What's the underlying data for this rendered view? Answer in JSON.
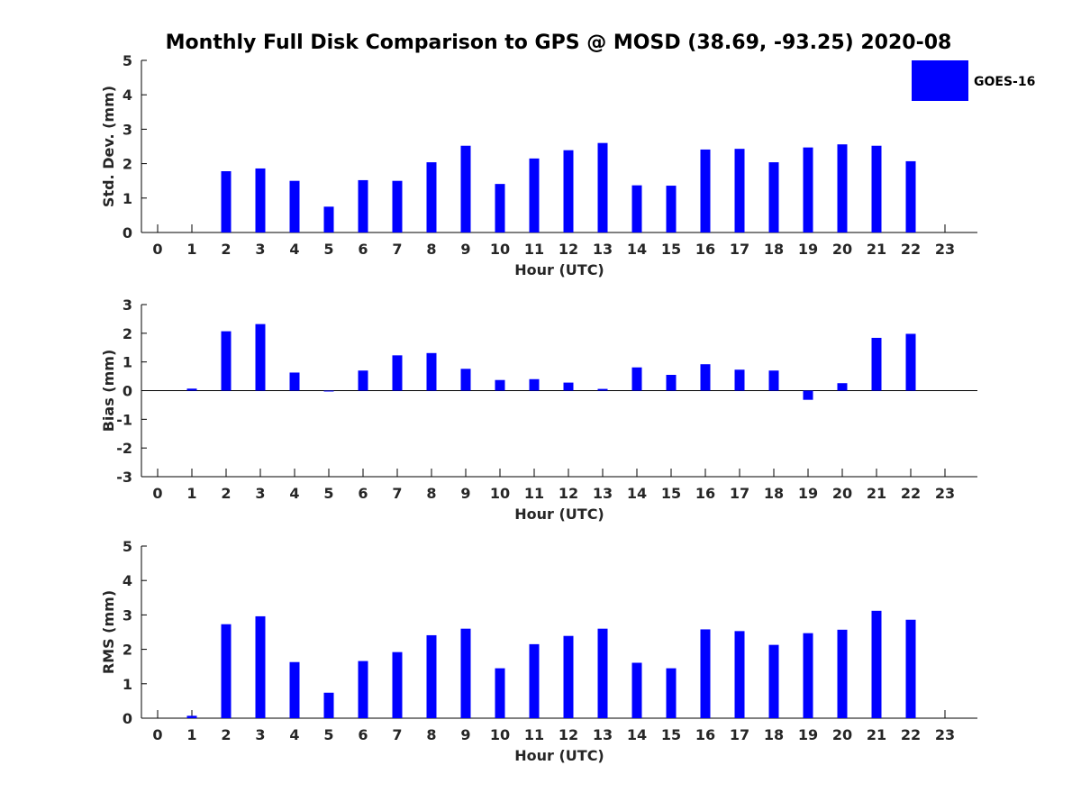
{
  "title": "Monthly Full Disk Comparison to GPS @ MOSD (38.69, -93.25) 2020-08",
  "legend": {
    "label": "GOES-16",
    "color": "#0000ff",
    "placement": "top-right"
  },
  "colors": {
    "bar": "#0000ff",
    "axis": "#000000",
    "text": "#262626"
  },
  "chart_data": [
    {
      "type": "bar",
      "title": "Monthly Full Disk Comparison to GPS @ MOSD (38.69, -93.25) 2020-08",
      "xlabel": "Hour (UTC)",
      "ylabel": "Std. Dev. (mm)",
      "ylim": [
        0,
        5
      ],
      "yticks": [
        0,
        1,
        2,
        3,
        4,
        5
      ],
      "zero_line": false,
      "categories": [
        "0",
        "1",
        "2",
        "3",
        "4",
        "5",
        "6",
        "7",
        "8",
        "9",
        "10",
        "11",
        "12",
        "13",
        "14",
        "15",
        "16",
        "17",
        "18",
        "19",
        "20",
        "21",
        "22",
        "23"
      ],
      "series": [
        {
          "name": "GOES-16",
          "values": [
            null,
            null,
            1.78,
            1.86,
            1.5,
            0.75,
            1.52,
            1.5,
            2.04,
            2.52,
            1.41,
            2.15,
            2.39,
            2.6,
            1.37,
            1.36,
            2.41,
            2.43,
            2.04,
            2.47,
            2.56,
            2.52,
            2.07,
            null
          ]
        }
      ]
    },
    {
      "type": "bar",
      "xlabel": "Hour (UTC)",
      "ylabel": "Bias (mm)",
      "ylim": [
        -3,
        3
      ],
      "yticks": [
        -3,
        -2,
        -1,
        0,
        1,
        2,
        3
      ],
      "zero_line": true,
      "categories": [
        "0",
        "1",
        "2",
        "3",
        "4",
        "5",
        "6",
        "7",
        "8",
        "9",
        "10",
        "11",
        "12",
        "13",
        "14",
        "15",
        "16",
        "17",
        "18",
        "19",
        "20",
        "21",
        "22",
        "23"
      ],
      "series": [
        {
          "name": "GOES-16",
          "values": [
            null,
            0.07,
            2.07,
            2.32,
            0.63,
            0.0,
            0.7,
            1.23,
            1.31,
            0.76,
            0.37,
            0.4,
            0.28,
            0.06,
            0.81,
            0.55,
            0.92,
            0.73,
            0.7,
            -0.32,
            0.26,
            1.84,
            1.98,
            null
          ]
        }
      ]
    },
    {
      "type": "bar",
      "xlabel": "Hour (UTC)",
      "ylabel": "RMS (mm)",
      "ylim": [
        0,
        5
      ],
      "yticks": [
        0,
        1,
        2,
        3,
        4,
        5
      ],
      "zero_line": false,
      "categories": [
        "0",
        "1",
        "2",
        "3",
        "4",
        "5",
        "6",
        "7",
        "8",
        "9",
        "10",
        "11",
        "12",
        "13",
        "14",
        "15",
        "16",
        "17",
        "18",
        "19",
        "20",
        "21",
        "22",
        "23"
      ],
      "series": [
        {
          "name": "GOES-16",
          "values": [
            null,
            0.07,
            2.73,
            2.96,
            1.63,
            0.74,
            1.66,
            1.92,
            2.41,
            2.6,
            1.45,
            2.15,
            2.39,
            2.6,
            1.61,
            1.45,
            2.58,
            2.53,
            2.13,
            2.47,
            2.57,
            3.12,
            2.86,
            null
          ]
        }
      ]
    }
  ]
}
